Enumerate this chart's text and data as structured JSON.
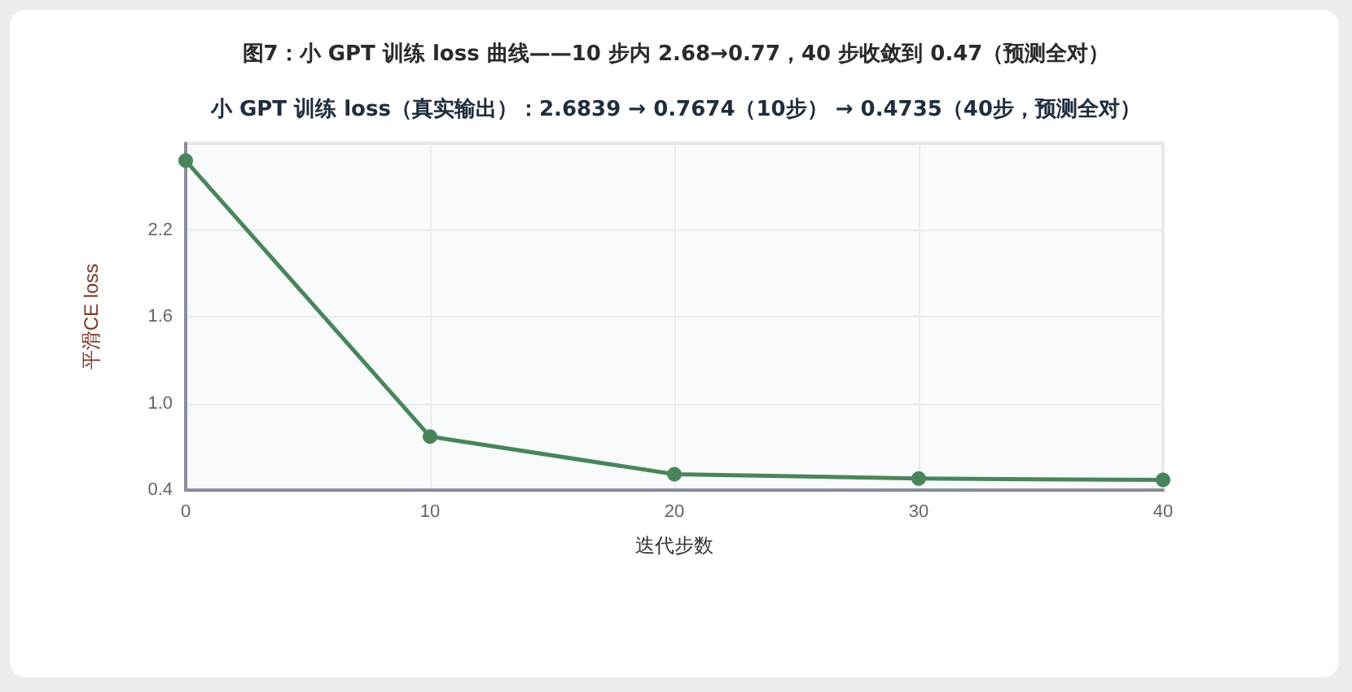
{
  "chart_data": {
    "type": "line",
    "title": "图7：小 GPT 训练 loss 曲线——10 步内 2.68→0.77，40 步收敛到 0.47（预测全对）",
    "subtitle": "小 GPT 训练 loss（真实输出）：2.6839 → 0.7674（10步） → 0.4735（40步，预测全对）",
    "xlabel": "迭代步数",
    "ylabel": "平滑CE loss",
    "x": [
      0,
      10,
      20,
      30,
      40
    ],
    "series": [
      {
        "color": "#4a855a",
        "values": [
          2.68,
          0.77,
          0.51,
          0.48,
          0.47
        ]
      }
    ],
    "xlim": [
      0,
      40
    ],
    "xticks": [
      0,
      10,
      20,
      30,
      40
    ],
    "ylim": [
      0.4,
      2.8
    ],
    "yticks": [
      0.4,
      {
        "value": 1,
        "label": "1.0"
      },
      1.6,
      2.2
    ],
    "grid": true,
    "marker": "circle",
    "line_style": "solid"
  }
}
